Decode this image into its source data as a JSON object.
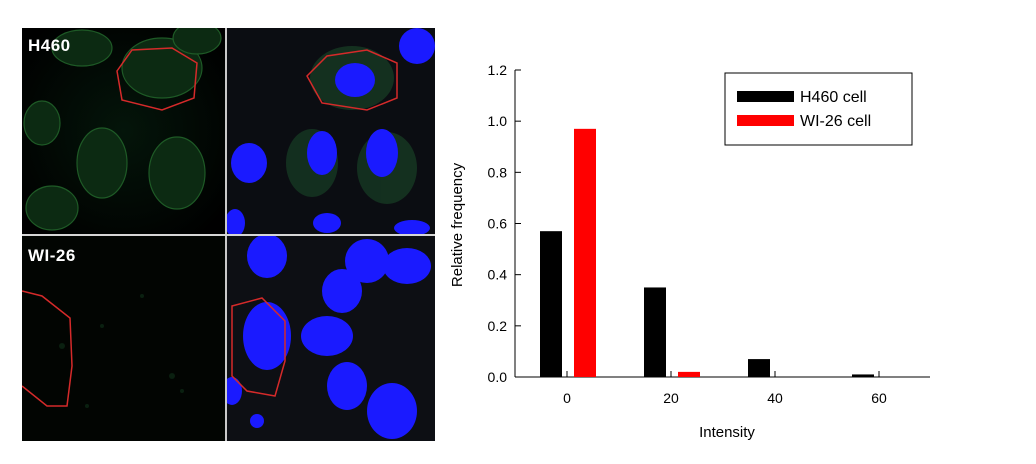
{
  "panels": {
    "top_label": "H460",
    "bottom_label": "WI-26"
  },
  "chart_data": {
    "type": "bar",
    "xlabel": "Intensity",
    "ylabel": "Relative frequency",
    "ylim": [
      0.0,
      1.2
    ],
    "yticks": [
      "0.0",
      "0.2",
      "0.4",
      "0.6",
      "0.8",
      "1.0",
      "1.2"
    ],
    "categories": [
      "0",
      "20",
      "40",
      "60"
    ],
    "series": [
      {
        "name": "H460 cell",
        "color": "#000000",
        "values": [
          0.57,
          0.35,
          0.07,
          0.01
        ]
      },
      {
        "name": "WI-26 cell",
        "color": "#ff0000",
        "values": [
          0.97,
          0.02,
          0.0,
          0.0
        ]
      }
    ],
    "legend": "top-right",
    "grid": false
  }
}
